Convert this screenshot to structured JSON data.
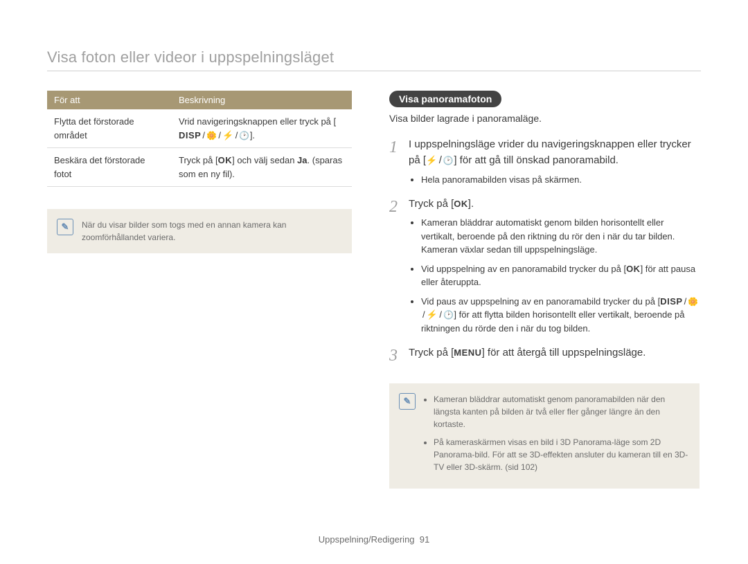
{
  "header": {
    "title": "Visa foton eller videor i uppspelningsläget"
  },
  "table": {
    "columns": [
      "För att",
      "Beskrivning"
    ],
    "rows": [
      {
        "action": "Flytta det förstorade området",
        "desc_prefix": "Vrid navigeringsknappen eller tryck på [",
        "desc_suffix": "]."
      },
      {
        "action": "Beskära det förstorade fotot",
        "desc_prefix": "Tryck på [",
        "desc_mid": "] och välj sedan ",
        "desc_bold": "Ja",
        "desc_suffix": ". (sparas som en ny fil)."
      }
    ]
  },
  "left_note": "När du visar bilder som togs med en annan kamera kan zoomförhållandet variera.",
  "right": {
    "pill": "Visa panoramafoton",
    "intro": "Visa bilder lagrade i panoramaläge.",
    "steps": {
      "s1": {
        "text_a": "I uppspelningsläge vrider du navigeringsknappen eller trycker på [",
        "text_b": "] för att gå till önskad panoramabild.",
        "sub1": "Hela panoramabilden visas på skärmen."
      },
      "s2": {
        "text_a": "Tryck på [",
        "text_b": "].",
        "sub1": "Kameran bläddrar automatiskt genom bilden horisontellt eller vertikalt, beroende på den riktning du rör den i när du tar bilden. Kameran växlar sedan till uppspelningsläge.",
        "sub2_a": "Vid uppspelning av en panoramabild trycker du på [",
        "sub2_b": "] för att pausa eller återuppta.",
        "sub3_a": "Vid paus av uppspelning av en panoramabild trycker du på [",
        "sub3_b": "] för att flytta bilden horisontellt eller vertikalt, beroende på riktningen du rörde den i när du tog bilden."
      },
      "s3": {
        "text_a": "Tryck på [",
        "text_b": "] för att återgå till uppspelningsläge."
      }
    },
    "note": {
      "n1": "Kameran bläddrar automatiskt genom panoramabilden när den längsta kanten på bilden är två eller fler gånger längre än den kortaste.",
      "n2": "På kameraskärmen visas en bild i 3D Panorama-läge som 2D Panorama-bild. För att se 3D-effekten ansluter du kameran till en 3D-TV eller 3D-skärm. (sid 102)"
    }
  },
  "footer": {
    "section": "Uppspelning/Redigering",
    "page": "91"
  },
  "colors": {
    "table_header_bg": "#a79874",
    "table_header_text": "#ffffff",
    "note_bg": "#efece4",
    "title_color": "#9f9f9f",
    "body_text": "#3a3a3a",
    "pill_bg": "#434343",
    "note_icon_border": "#6a8fb5"
  },
  "typography": {
    "title_fontsize": 22,
    "body_fontsize": 14,
    "table_fontsize": 13,
    "note_fontsize": 12,
    "step_number_fontsize": 24
  }
}
